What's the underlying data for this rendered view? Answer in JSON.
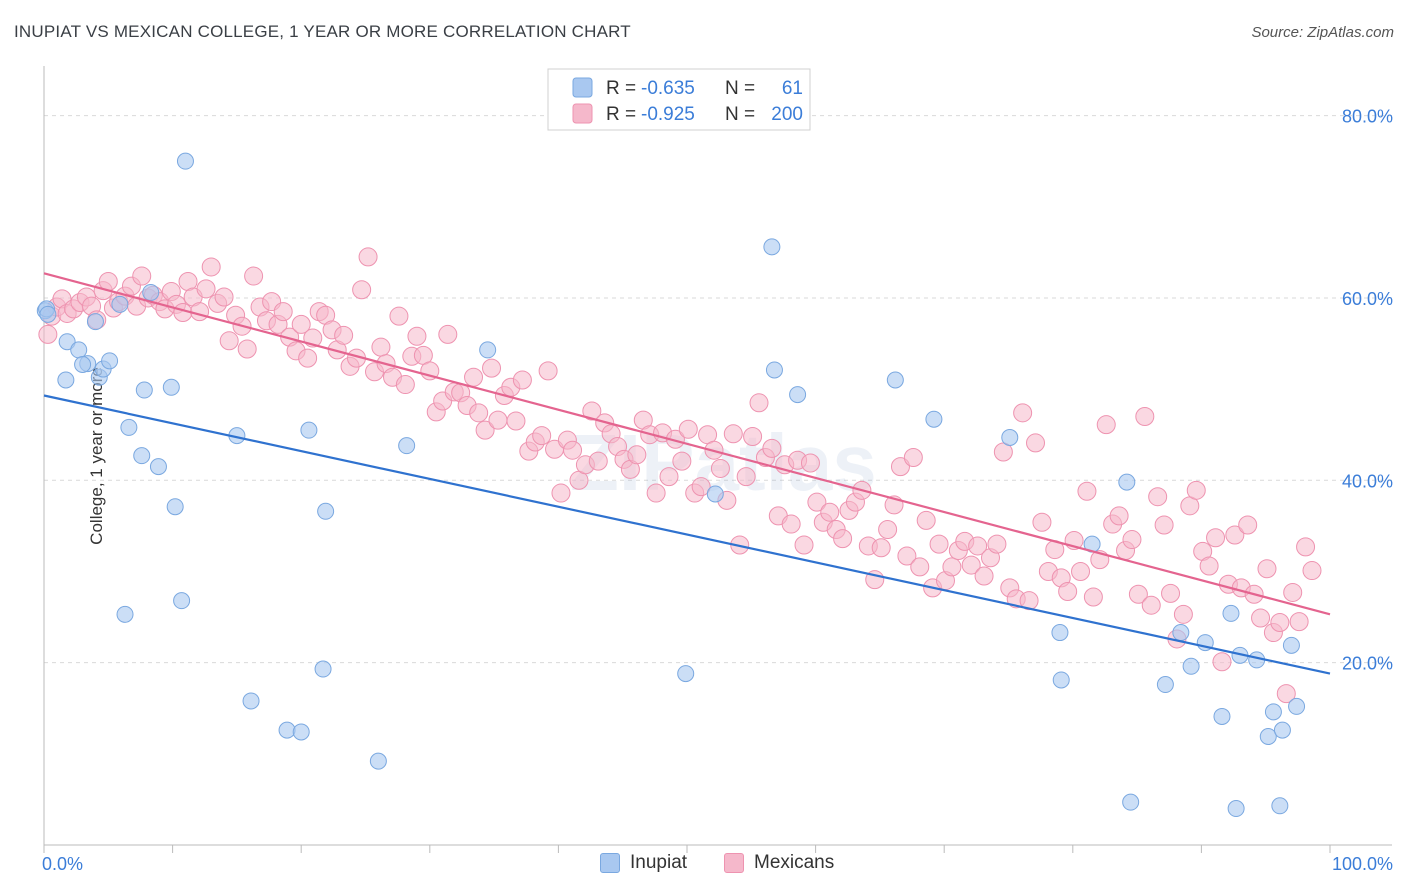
{
  "title": "INUPIAT VS MEXICAN COLLEGE, 1 YEAR OR MORE CORRELATION CHART",
  "source": "Source: ZipAtlas.com",
  "watermark": "ZIPatlas",
  "colors": {
    "inupiat_fill": "#a9c8f0",
    "inupiat_stroke": "#7aa8e0",
    "inupiat_line": "#2f72cf",
    "mexican_fill": "#f5b8cb",
    "mexican_stroke": "#ee93b0",
    "mexican_line": "#e4648f",
    "axis_text": "#3b7dd8",
    "grid": "#d9d9d9"
  },
  "legend": {
    "rows": [
      {
        "r_label": "R = ",
        "r_value": "-0.635",
        "n_label": "N = ",
        "n_value": "61"
      },
      {
        "r_label": "R = ",
        "r_value": "-0.925",
        "n_label": "N = ",
        "n_value": "200"
      }
    ]
  },
  "bottom_legend": [
    "Inupiat",
    "Mexicans"
  ],
  "chart_data": {
    "type": "scatter",
    "xlabel": "",
    "ylabel": "College, 1 year or more",
    "xlim": [
      0,
      100
    ],
    "ylim": [
      0,
      85
    ],
    "x_tick_labels": [
      {
        "value": 0,
        "label": "0.0%"
      },
      {
        "value": 100,
        "label": "100.0%"
      }
    ],
    "y_tick_labels": [
      {
        "value": 20,
        "label": "20.0%"
      },
      {
        "value": 40,
        "label": "40.0%"
      },
      {
        "value": 60,
        "label": "60.0%"
      },
      {
        "value": 80,
        "label": "80.0%"
      }
    ],
    "grid": true,
    "legend_position": "top-center",
    "series": [
      {
        "name": "Inupiat",
        "r": -0.635,
        "n": 61,
        "trend": {
          "x": [
            0,
            100
          ],
          "y": [
            49.3,
            18.8
          ]
        },
        "points": [
          [
            0.1,
            58.6
          ],
          [
            0.2,
            58.8
          ],
          [
            1.7,
            51.0
          ],
          [
            1.8,
            55.2
          ],
          [
            2.7,
            54.3
          ],
          [
            3.4,
            52.8
          ],
          [
            4.0,
            57.4
          ],
          [
            4.3,
            51.3
          ],
          [
            4.6,
            52.2
          ],
          [
            5.1,
            53.1
          ],
          [
            5.9,
            59.3
          ],
          [
            6.3,
            25.3
          ],
          [
            6.6,
            45.8
          ],
          [
            7.6,
            42.7
          ],
          [
            7.8,
            49.9
          ],
          [
            8.3,
            60.6
          ],
          [
            8.9,
            41.5
          ],
          [
            9.9,
            50.2
          ],
          [
            10.2,
            37.1
          ],
          [
            10.7,
            26.8
          ],
          [
            11.0,
            75.0
          ],
          [
            15.0,
            44.9
          ],
          [
            16.1,
            15.8
          ],
          [
            18.9,
            12.6
          ],
          [
            20.0,
            12.4
          ],
          [
            20.6,
            45.5
          ],
          [
            21.7,
            19.3
          ],
          [
            21.9,
            36.6
          ],
          [
            26.0,
            9.2
          ],
          [
            28.2,
            43.8
          ],
          [
            34.5,
            54.3
          ],
          [
            49.9,
            18.8
          ],
          [
            52.2,
            38.5
          ],
          [
            56.6,
            65.6
          ],
          [
            56.8,
            52.1
          ],
          [
            58.6,
            49.4
          ],
          [
            66.2,
            51.0
          ],
          [
            69.2,
            46.7
          ],
          [
            75.1,
            44.7
          ],
          [
            79.0,
            23.3
          ],
          [
            79.1,
            18.1
          ],
          [
            81.5,
            33.0
          ],
          [
            84.2,
            39.8
          ],
          [
            84.5,
            4.7
          ],
          [
            87.2,
            17.6
          ],
          [
            88.4,
            23.3
          ],
          [
            89.2,
            19.6
          ],
          [
            90.3,
            22.2
          ],
          [
            91.6,
            14.1
          ],
          [
            92.3,
            25.4
          ],
          [
            92.7,
            4.0
          ],
          [
            93.0,
            20.8
          ],
          [
            94.3,
            20.3
          ],
          [
            95.2,
            11.9
          ],
          [
            95.6,
            14.6
          ],
          [
            96.1,
            4.3
          ],
          [
            96.3,
            12.6
          ],
          [
            97.0,
            21.9
          ],
          [
            97.4,
            15.2
          ],
          [
            0.3,
            58.2
          ],
          [
            3.0,
            52.7
          ]
        ]
      },
      {
        "name": "Mexicans",
        "r": -0.925,
        "n": 200,
        "trend": {
          "x": [
            0,
            100
          ],
          "y": [
            62.7,
            25.3
          ]
        },
        "points": [
          [
            0.3,
            56.0
          ],
          [
            0.6,
            58.0
          ],
          [
            1.0,
            59.0
          ],
          [
            1.4,
            59.9
          ],
          [
            1.8,
            58.3
          ],
          [
            2.3,
            58.8
          ],
          [
            2.8,
            59.5
          ],
          [
            3.3,
            60.1
          ],
          [
            3.7,
            59.1
          ],
          [
            4.1,
            57.6
          ],
          [
            4.6,
            60.8
          ],
          [
            5.0,
            61.8
          ],
          [
            5.4,
            58.9
          ],
          [
            5.8,
            59.6
          ],
          [
            6.3,
            60.2
          ],
          [
            6.8,
            61.3
          ],
          [
            7.2,
            59.1
          ],
          [
            7.6,
            62.4
          ],
          [
            8.1,
            60.0
          ],
          [
            8.5,
            60.3
          ],
          [
            9.0,
            59.6
          ],
          [
            9.4,
            58.8
          ],
          [
            9.9,
            60.7
          ],
          [
            10.3,
            59.3
          ],
          [
            10.8,
            58.4
          ],
          [
            11.2,
            61.8
          ],
          [
            11.6,
            60.1
          ],
          [
            12.1,
            58.5
          ],
          [
            12.6,
            61.0
          ],
          [
            13.0,
            63.4
          ],
          [
            13.5,
            59.4
          ],
          [
            14.0,
            60.1
          ],
          [
            14.4,
            55.3
          ],
          [
            14.9,
            58.1
          ],
          [
            15.4,
            56.9
          ],
          [
            15.8,
            54.4
          ],
          [
            16.3,
            62.4
          ],
          [
            16.8,
            59.0
          ],
          [
            17.3,
            57.5
          ],
          [
            17.7,
            59.6
          ],
          [
            18.2,
            57.1
          ],
          [
            18.6,
            58.5
          ],
          [
            19.1,
            55.7
          ],
          [
            19.6,
            54.2
          ],
          [
            20.0,
            57.1
          ],
          [
            20.5,
            53.4
          ],
          [
            20.9,
            55.6
          ],
          [
            21.4,
            58.5
          ],
          [
            21.9,
            58.1
          ],
          [
            22.4,
            56.5
          ],
          [
            22.8,
            54.3
          ],
          [
            23.3,
            55.9
          ],
          [
            23.8,
            52.5
          ],
          [
            24.3,
            53.4
          ],
          [
            24.7,
            60.9
          ],
          [
            25.2,
            64.5
          ],
          [
            25.7,
            51.9
          ],
          [
            26.2,
            54.6
          ],
          [
            26.6,
            52.8
          ],
          [
            27.1,
            51.3
          ],
          [
            27.6,
            58.0
          ],
          [
            28.1,
            50.5
          ],
          [
            28.6,
            53.6
          ],
          [
            29.0,
            55.8
          ],
          [
            29.5,
            53.7
          ],
          [
            30.0,
            52.0
          ],
          [
            30.5,
            47.5
          ],
          [
            31.0,
            48.7
          ],
          [
            31.4,
            56.0
          ],
          [
            31.9,
            49.7
          ],
          [
            32.4,
            49.6
          ],
          [
            32.9,
            48.2
          ],
          [
            33.4,
            51.3
          ],
          [
            33.8,
            47.4
          ],
          [
            34.3,
            45.5
          ],
          [
            34.8,
            52.3
          ],
          [
            35.3,
            46.6
          ],
          [
            35.8,
            49.3
          ],
          [
            36.3,
            50.2
          ],
          [
            36.7,
            46.5
          ],
          [
            37.2,
            51.0
          ],
          [
            37.7,
            43.2
          ],
          [
            38.2,
            44.2
          ],
          [
            38.7,
            44.9
          ],
          [
            39.2,
            52.0
          ],
          [
            39.7,
            43.4
          ],
          [
            40.2,
            38.6
          ],
          [
            40.7,
            44.4
          ],
          [
            41.1,
            43.3
          ],
          [
            41.6,
            40.0
          ],
          [
            42.1,
            41.7
          ],
          [
            42.6,
            47.6
          ],
          [
            43.1,
            42.1
          ],
          [
            43.6,
            46.3
          ],
          [
            44.1,
            45.1
          ],
          [
            44.6,
            43.7
          ],
          [
            45.1,
            42.3
          ],
          [
            45.6,
            41.2
          ],
          [
            46.1,
            42.8
          ],
          [
            46.6,
            46.6
          ],
          [
            47.1,
            45.0
          ],
          [
            47.6,
            38.6
          ],
          [
            48.1,
            45.2
          ],
          [
            48.6,
            40.4
          ],
          [
            49.1,
            44.5
          ],
          [
            49.6,
            42.1
          ],
          [
            50.1,
            45.6
          ],
          [
            50.6,
            38.6
          ],
          [
            51.1,
            39.3
          ],
          [
            51.6,
            45.0
          ],
          [
            52.1,
            43.3
          ],
          [
            52.6,
            41.3
          ],
          [
            53.1,
            37.8
          ],
          [
            53.6,
            45.1
          ],
          [
            54.1,
            32.9
          ],
          [
            54.6,
            40.4
          ],
          [
            55.1,
            44.8
          ],
          [
            55.6,
            48.5
          ],
          [
            56.1,
            42.5
          ],
          [
            56.6,
            43.5
          ],
          [
            57.1,
            36.1
          ],
          [
            57.6,
            41.7
          ],
          [
            58.1,
            35.2
          ],
          [
            58.6,
            42.2
          ],
          [
            59.1,
            32.9
          ],
          [
            59.6,
            41.9
          ],
          [
            60.1,
            37.6
          ],
          [
            60.6,
            35.4
          ],
          [
            61.1,
            36.5
          ],
          [
            61.6,
            34.6
          ],
          [
            62.1,
            33.6
          ],
          [
            62.6,
            36.7
          ],
          [
            63.1,
            37.6
          ],
          [
            63.6,
            38.9
          ],
          [
            64.1,
            32.8
          ],
          [
            64.6,
            29.1
          ],
          [
            65.1,
            32.6
          ],
          [
            65.6,
            34.6
          ],
          [
            66.1,
            37.3
          ],
          [
            66.6,
            41.5
          ],
          [
            67.1,
            31.7
          ],
          [
            67.6,
            42.5
          ],
          [
            68.1,
            30.5
          ],
          [
            68.6,
            35.6
          ],
          [
            69.1,
            28.2
          ],
          [
            69.6,
            33.0
          ],
          [
            70.1,
            29.0
          ],
          [
            70.6,
            30.5
          ],
          [
            71.1,
            32.3
          ],
          [
            71.6,
            33.3
          ],
          [
            72.1,
            30.7
          ],
          [
            72.6,
            32.8
          ],
          [
            73.1,
            29.5
          ],
          [
            73.6,
            31.5
          ],
          [
            74.1,
            33.0
          ],
          [
            74.6,
            43.1
          ],
          [
            75.1,
            28.2
          ],
          [
            75.6,
            27.0
          ],
          [
            76.1,
            47.4
          ],
          [
            76.6,
            26.8
          ],
          [
            77.1,
            44.1
          ],
          [
            77.6,
            35.4
          ],
          [
            78.1,
            30.0
          ],
          [
            78.6,
            32.4
          ],
          [
            79.1,
            29.3
          ],
          [
            79.6,
            27.8
          ],
          [
            80.1,
            33.4
          ],
          [
            80.6,
            30.0
          ],
          [
            81.1,
            38.8
          ],
          [
            81.6,
            27.2
          ],
          [
            82.1,
            31.3
          ],
          [
            82.6,
            46.1
          ],
          [
            83.1,
            35.2
          ],
          [
            83.6,
            36.1
          ],
          [
            84.1,
            32.3
          ],
          [
            84.6,
            33.5
          ],
          [
            85.1,
            27.5
          ],
          [
            85.6,
            47.0
          ],
          [
            86.1,
            26.3
          ],
          [
            86.6,
            38.2
          ],
          [
            87.1,
            35.1
          ],
          [
            87.6,
            27.6
          ],
          [
            88.1,
            22.6
          ],
          [
            88.6,
            25.3
          ],
          [
            89.1,
            37.2
          ],
          [
            89.6,
            38.9
          ],
          [
            90.1,
            32.2
          ],
          [
            90.6,
            30.6
          ],
          [
            91.1,
            33.7
          ],
          [
            91.6,
            20.1
          ],
          [
            92.1,
            28.6
          ],
          [
            92.6,
            34.0
          ],
          [
            93.1,
            28.2
          ],
          [
            93.6,
            35.1
          ],
          [
            94.1,
            27.5
          ],
          [
            94.6,
            24.9
          ],
          [
            95.1,
            30.3
          ],
          [
            95.6,
            23.3
          ],
          [
            96.1,
            24.4
          ],
          [
            96.6,
            16.6
          ],
          [
            97.1,
            27.7
          ],
          [
            97.6,
            24.5
          ],
          [
            98.1,
            32.7
          ],
          [
            98.6,
            30.1
          ]
        ]
      }
    ]
  }
}
